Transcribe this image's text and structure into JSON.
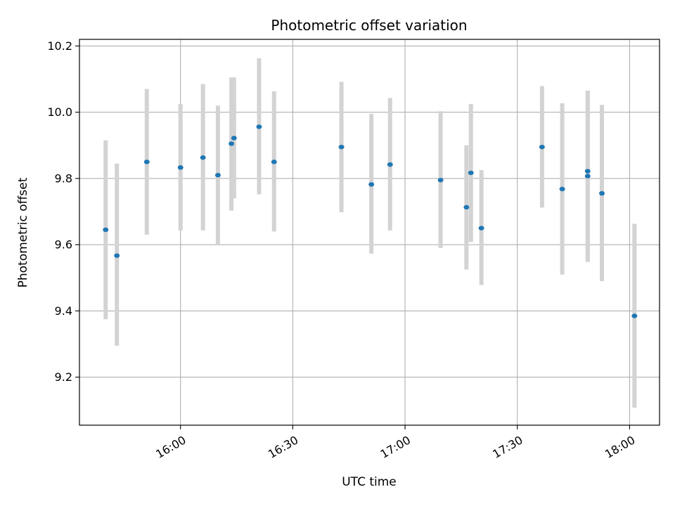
{
  "chart_data": {
    "type": "scatter",
    "title": "Photometric offset variation",
    "xlabel": "UTC time",
    "ylabel": "Photometric offset",
    "xlim": [
      "15:33",
      "18:08"
    ],
    "ylim": [
      9.055,
      10.22
    ],
    "x_ticks": [
      "16:00",
      "16:30",
      "17:00",
      "17:30",
      "18:00"
    ],
    "y_ticks": [
      9.2,
      9.4,
      9.6,
      9.8,
      10.0,
      10.2
    ],
    "grid": true,
    "point_color": "#1f77b4",
    "errorbar_color": "#d3d3d3",
    "points": [
      {
        "x": "15:40",
        "y": 9.645,
        "yerr_low": 9.375,
        "yerr_high": 9.915
      },
      {
        "x": "15:43",
        "y": 9.567,
        "yerr_low": 9.295,
        "yerr_high": 9.845
      },
      {
        "x": "15:51",
        "y": 9.85,
        "yerr_low": 9.63,
        "yerr_high": 10.07
      },
      {
        "x": "16:00",
        "y": 9.833,
        "yerr_low": 9.643,
        "yerr_high": 10.025
      },
      {
        "x": "16:06",
        "y": 9.863,
        "yerr_low": 9.643,
        "yerr_high": 10.085
      },
      {
        "x": "16:10",
        "y": 9.81,
        "yerr_low": 9.6,
        "yerr_high": 10.02
      },
      {
        "x": "16:13.6",
        "y": 9.905,
        "yerr_low": 9.703,
        "yerr_high": 10.105
      },
      {
        "x": "16:14.3",
        "y": 9.922,
        "yerr_low": 9.74,
        "yerr_high": 10.105
      },
      {
        "x": "16:21",
        "y": 9.956,
        "yerr_low": 9.752,
        "yerr_high": 10.163
      },
      {
        "x": "16:25",
        "y": 9.85,
        "yerr_low": 9.64,
        "yerr_high": 10.063
      },
      {
        "x": "16:43",
        "y": 9.895,
        "yerr_low": 9.698,
        "yerr_high": 10.092
      },
      {
        "x": "16:51",
        "y": 9.782,
        "yerr_low": 9.573,
        "yerr_high": 9.995
      },
      {
        "x": "16:56",
        "y": 9.842,
        "yerr_low": 9.643,
        "yerr_high": 10.043
      },
      {
        "x": "17:09.5",
        "y": 9.795,
        "yerr_low": 9.59,
        "yerr_high": 10.003
      },
      {
        "x": "17:16.4",
        "y": 9.713,
        "yerr_low": 9.525,
        "yerr_high": 9.9
      },
      {
        "x": "17:17.6",
        "y": 9.817,
        "yerr_low": 9.608,
        "yerr_high": 10.025
      },
      {
        "x": "17:20.4",
        "y": 9.65,
        "yerr_low": 9.478,
        "yerr_high": 9.825
      },
      {
        "x": "17:36.6",
        "y": 9.895,
        "yerr_low": 9.712,
        "yerr_high": 10.079
      },
      {
        "x": "17:42",
        "y": 9.768,
        "yerr_low": 9.51,
        "yerr_high": 10.027
      },
      {
        "x": "17:48.8",
        "y": 9.822,
        "yerr_low": 9.548,
        "yerr_high": 10.065
      },
      {
        "x": "17:48.8",
        "y": 9.807,
        "yerr_low": 9.548,
        "yerr_high": 10.065
      },
      {
        "x": "17:52.6",
        "y": 9.755,
        "yerr_low": 9.49,
        "yerr_high": 10.022
      },
      {
        "x": "18:01.3",
        "y": 9.385,
        "yerr_low": 9.108,
        "yerr_high": 9.663
      }
    ]
  }
}
